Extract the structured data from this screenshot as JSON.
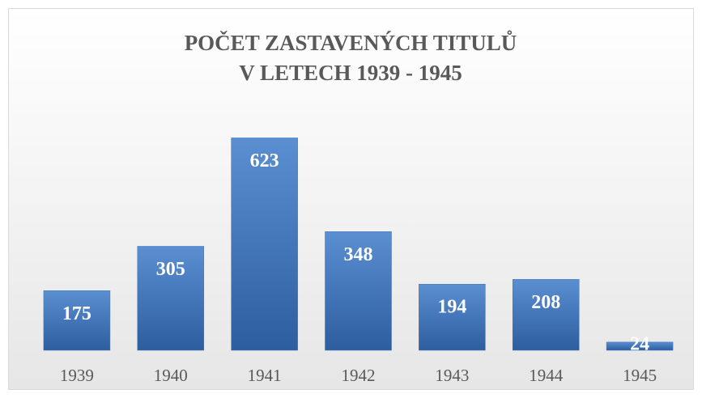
{
  "chart_data": {
    "type": "bar",
    "title": [
      "POČET ZASTAVENÝCH TITULŮ",
      "V LETECH 1939 - 1945"
    ],
    "categories": [
      "1939",
      "1940",
      "1941",
      "1942",
      "1943",
      "1944",
      "1945"
    ],
    "values": [
      175,
      305,
      623,
      348,
      194,
      208,
      24
    ],
    "color": "#3f73b8",
    "ylim": [
      0,
      700
    ]
  }
}
